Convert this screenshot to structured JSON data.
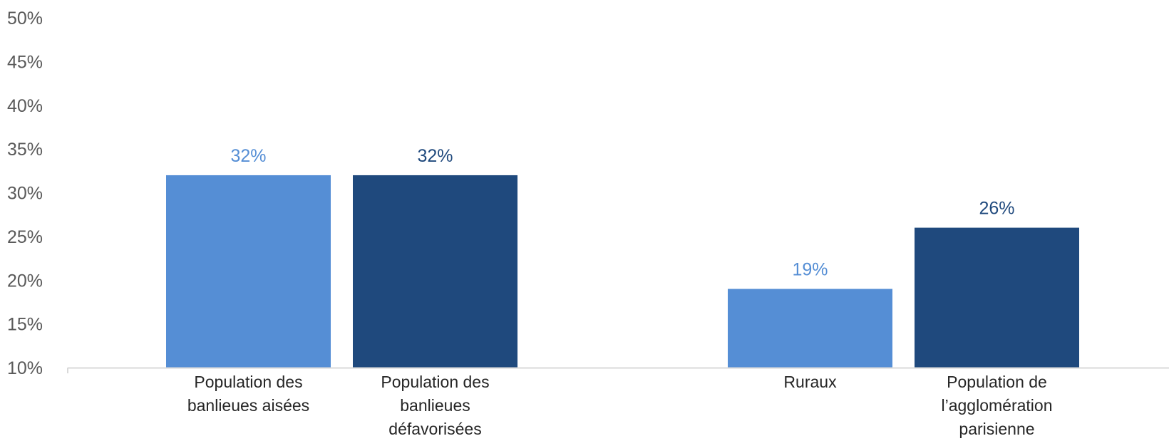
{
  "chart_data": {
    "type": "bar",
    "title": "",
    "xlabel": "",
    "ylabel": "",
    "ylim": [
      10,
      50
    ],
    "y_ticks": [
      {
        "value": 10,
        "label": "10%"
      },
      {
        "value": 15,
        "label": "15%"
      },
      {
        "value": 20,
        "label": "20%"
      },
      {
        "value": 25,
        "label": "25%"
      },
      {
        "value": 30,
        "label": "30%"
      },
      {
        "value": 35,
        "label": "35%"
      },
      {
        "value": 40,
        "label": "40%"
      },
      {
        "value": 45,
        "label": "45%"
      },
      {
        "value": 50,
        "label": "50%"
      }
    ],
    "grid": false,
    "legend": "none",
    "groups": [
      {
        "bars": [
          {
            "category": [
              "Population des",
              "banlieues aisées"
            ],
            "value": 32,
            "label": "32%",
            "color": "#558ED5"
          },
          {
            "category": [
              "Population des",
              "banlieues",
              "défavorisées"
            ],
            "value": 32,
            "label": "32%",
            "color": "#1F497D"
          }
        ]
      },
      {
        "bars": [
          {
            "category": [
              "Ruraux"
            ],
            "value": 19,
            "label": "19%",
            "color": "#558ED5"
          },
          {
            "category": [
              "Population de",
              "l’agglomération",
              "parisienne"
            ],
            "value": 26,
            "label": "26%",
            "color": "#1F497D"
          }
        ]
      }
    ]
  }
}
